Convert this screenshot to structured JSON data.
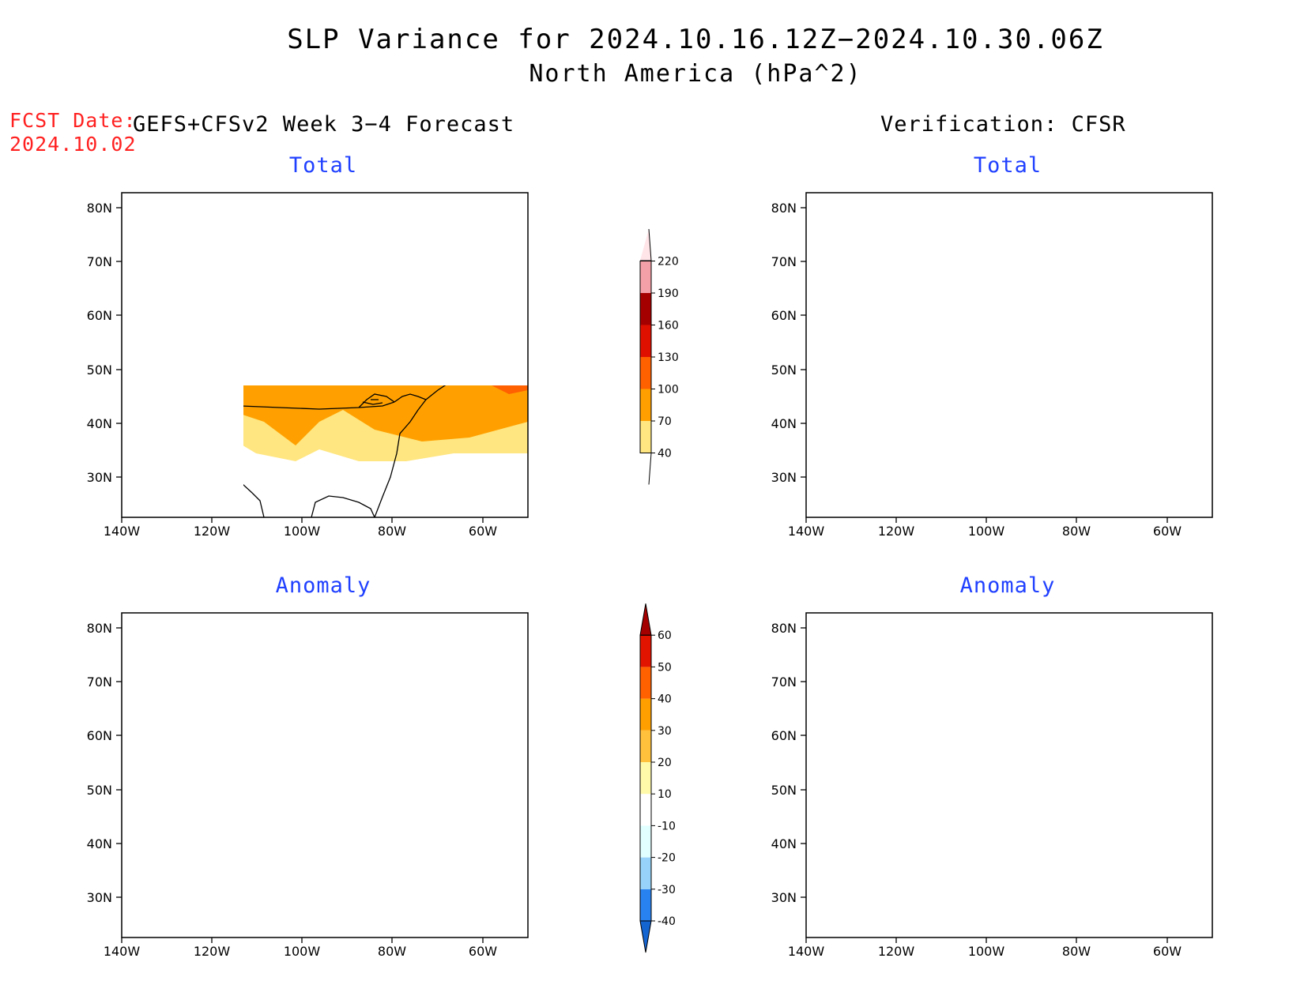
{
  "title": "SLP Variance for 2024.10.16.12Z−2024.10.30.06Z",
  "subtitle": "North America (hPa^2)",
  "fcst_label": "FCST Date:",
  "fcst_date": "2024.10.02",
  "left_header": "GEFS+CFSv2 Week 3−4 Forecast",
  "right_header": "Verification: CFSR",
  "panels": {
    "tl_title": "Total",
    "tr_title": "Total",
    "bl_title": "Anomaly",
    "br_title": "Anomaly"
  },
  "lat_labels": [
    "80N",
    "70N",
    "60N",
    "50N",
    "40N",
    "30N"
  ],
  "lon_labels": [
    "140W",
    "120W",
    "100W",
    "80W",
    "60W"
  ],
  "total_scale": {
    "levels": [
      "40",
      "70",
      "100",
      "130",
      "160",
      "190",
      "220"
    ],
    "colors": [
      "#ffffff",
      "#ffe680",
      "#ffa000",
      "#ff6000",
      "#e01000",
      "#a50000",
      "#f4a0a8",
      "#ffe4e8"
    ]
  },
  "anomaly_scale": {
    "levels": [
      "-40",
      "-30",
      "-20",
      "-10",
      "10",
      "20",
      "30",
      "40",
      "50",
      "60"
    ],
    "colors": [
      "#1464d2",
      "#2882f0",
      "#96d2fa",
      "#e1ffff",
      "#ffffff",
      "#fffaaa",
      "#ffc03c",
      "#ffa000",
      "#ff6000",
      "#e11400",
      "#a50000"
    ]
  }
}
